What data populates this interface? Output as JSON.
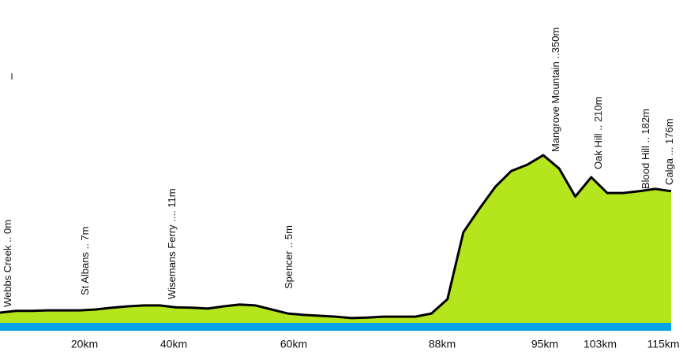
{
  "chart_data": {
    "type": "area",
    "values": [
      0,
      4,
      4,
      5,
      5,
      5,
      7,
      11,
      14,
      16,
      16,
      12,
      11,
      9,
      14,
      18,
      16,
      7,
      -2,
      -5,
      -7,
      -9,
      -12,
      -11,
      -9,
      -9,
      -9,
      -2,
      30,
      179,
      231,
      280,
      315,
      329,
      350,
      320,
      258,
      301,
      266,
      266,
      270,
      275,
      270
    ],
    "color": "#b5e61d",
    "line_color": "#000000",
    "water_color": "#00a2e8",
    "ylim": [
      -28,
      695
    ],
    "annotations": [
      "Webbs Creek  .. 0m",
      "St Albans   .. 7m",
      "Wisemans Ferry .... 11m",
      "Spencer   ..  5m",
      "Mangrove Mountain ..350m",
      "Oak Hill   .. 210m",
      "Blood Hill   .. 182m",
      "Calga ... 176m"
    ],
    "xtick_labels": [
      "20km",
      "40km",
      "60km",
      "88km",
      "95km",
      "103km",
      "115km"
    ]
  }
}
